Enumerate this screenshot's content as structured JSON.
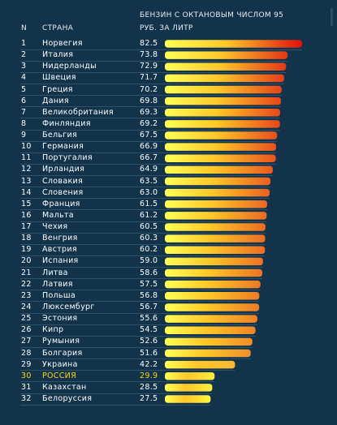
{
  "header": {
    "n": "N",
    "country": "СТРАНА",
    "title_line1": "БЕНЗИН С ОКТАНОВЫМ ЧИСЛОМ 95",
    "title_line2": "РУБ. ЗА ЛИТР"
  },
  "colors": {
    "background": "#12334a",
    "bar_low": "#ffff40",
    "bar_high": "#e01010",
    "highlight_text": "#ffd21e"
  },
  "chart_data": {
    "type": "bar",
    "orientation": "horizontal",
    "title": "БЕНЗИН С ОКТАНОВЫМ ЧИСЛОМ 95",
    "ylabel": "РУБ. ЗА ЛИТР",
    "xlim": [
      0,
      82.5
    ],
    "highlight": "РОССИЯ",
    "ranks": [
      "1",
      "2",
      "3",
      "4",
      "5",
      "6",
      "7",
      "8",
      "9",
      "10",
      "11",
      "12",
      "13",
      "14",
      "15",
      "16",
      "17",
      "18",
      "19",
      "20",
      "21",
      "22",
      "23",
      "24",
      "25",
      "26",
      "27",
      "28",
      "29",
      "30",
      "31",
      "32"
    ],
    "categories": [
      "Норвегия",
      "Италия",
      "Нидерланды",
      "Швеция",
      "Греция",
      "Дания",
      "Великобритания",
      "Финляндия",
      "Бельгия",
      "Германия",
      "Португалия",
      "Ирландия",
      "Словакия",
      "Словения",
      "Франция",
      "Мальта",
      "Чехия",
      "Венгрия",
      "Австрия",
      "Испания",
      "Литва",
      "Латвия",
      "Польша",
      "Люксембург",
      "Эстония",
      "Кипр",
      "Румыния",
      "Болгария",
      "Украина",
      "РОССИЯ",
      "Казахстан",
      "Белоруссия"
    ],
    "value_labels": [
      "82.5",
      "73.8",
      "72.9",
      "71.7",
      "70.2",
      "69.8",
      "69.3",
      "69.2",
      "67.5",
      "66.9",
      "66.7",
      "64.9",
      "63.5",
      "63.0",
      "61.5",
      "61.2",
      "60.5",
      "60.3",
      "60.2",
      "59.0",
      "58.6",
      "57.5",
      "56.8",
      "56.7",
      "55.6",
      "54.5",
      "52.6",
      "51.6",
      "42.2",
      "29.9",
      "28.5",
      "27.5"
    ],
    "values": [
      82.5,
      73.8,
      72.9,
      71.7,
      70.2,
      69.8,
      69.3,
      69.2,
      67.5,
      66.9,
      66.7,
      64.9,
      63.5,
      63.0,
      61.5,
      61.2,
      60.5,
      60.3,
      60.2,
      59.0,
      58.6,
      57.5,
      56.8,
      56.7,
      55.6,
      54.5,
      52.6,
      51.6,
      42.2,
      29.9,
      28.5,
      27.5
    ]
  }
}
